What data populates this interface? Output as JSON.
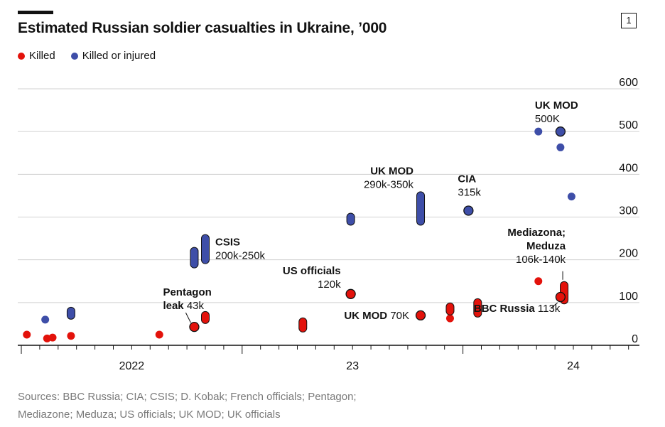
{
  "header": {
    "badge": "1",
    "title": "Estimated Russian soldier casualties in Ukraine, ’000"
  },
  "legend": [
    {
      "label": "Killed",
      "color": "#e3120b"
    },
    {
      "label": "Killed or injured",
      "color": "#3e4ea8"
    }
  ],
  "sources": {
    "line1": "Sources: BBC Russia; CIA; CSIS; D. Kobak; French officials; Pentagon;",
    "line2": "Mediazone; Meduza; US officials; UK MOD; UK officials"
  },
  "chart_data": {
    "type": "scatter",
    "x_unit": "months since Jan 2022",
    "y_ticks": [
      0,
      100,
      200,
      300,
      400,
      500,
      600
    ],
    "ylim": [
      0,
      600
    ],
    "xlim": [
      1.2,
      30.7
    ],
    "x_tick_labels": [
      {
        "x": 12,
        "label": "2022"
      },
      {
        "x": 24,
        "label": "23"
      },
      {
        "x": 36,
        "label": "24"
      }
    ],
    "grid": true,
    "colors": {
      "killed": "#e3120b",
      "injured": "#3e4ea8"
    },
    "series": [
      {
        "name": "Killed",
        "points": [
          {
            "x": 1.3,
            "y": 25,
            "y2": 25
          },
          {
            "x": 2.4,
            "y": 16,
            "y2": 16
          },
          {
            "x": 2.7,
            "y": 18,
            "y2": 18
          },
          {
            "x": 3.7,
            "y": 22,
            "y2": 22
          },
          {
            "x": 8.5,
            "y": 25,
            "y2": 25
          },
          {
            "x": 10.4,
            "y": 43,
            "y2": 43,
            "highlight": true
          },
          {
            "x": 11.0,
            "y": 60,
            "y2": 70
          },
          {
            "x": 16.3,
            "y": 40,
            "y2": 55
          },
          {
            "x": 18.9,
            "y": 120,
            "y2": 120,
            "highlight": true
          },
          {
            "x": 22.7,
            "y": 70,
            "y2": 70,
            "highlight": true
          },
          {
            "x": 24.3,
            "y": 63,
            "y2": 63
          },
          {
            "x": 24.3,
            "y": 80,
            "y2": 90
          },
          {
            "x": 25.8,
            "y": 75,
            "y2": 100
          },
          {
            "x": 29.1,
            "y": 150,
            "y2": 150
          },
          {
            "x": 30.5,
            "y": 106,
            "y2": 140
          },
          {
            "x": 30.3,
            "y": 113,
            "y2": 113,
            "highlight": true
          }
        ]
      },
      {
        "name": "Killed or injured",
        "points": [
          {
            "x": 2.3,
            "y": 60,
            "y2": 60
          },
          {
            "x": 3.7,
            "y": 70,
            "y2": 80
          },
          {
            "x": 10.4,
            "y": 190,
            "y2": 220
          },
          {
            "x": 11.0,
            "y": 200,
            "y2": 250
          },
          {
            "x": 18.9,
            "y": 290,
            "y2": 300
          },
          {
            "x": 22.7,
            "y": 290,
            "y2": 350
          },
          {
            "x": 25.3,
            "y": 315,
            "y2": 315,
            "highlight": true
          },
          {
            "x": 29.1,
            "y": 500,
            "y2": 500
          },
          {
            "x": 30.3,
            "y": 463,
            "y2": 463
          },
          {
            "x": 30.3,
            "y": 500,
            "y2": 500,
            "highlight": true
          },
          {
            "x": 30.9,
            "y": 348,
            "y2": 348
          }
        ]
      }
    ],
    "annotations": [
      {
        "bold": "UK MOD",
        "value": "500K",
        "x": 30.3,
        "y": 500
      },
      {
        "bold": "CIA",
        "value": "315k",
        "x": 25.3,
        "y": 315
      },
      {
        "bold": "UK MOD",
        "value": "290k-350k",
        "x": 22.7,
        "y": 350
      },
      {
        "bold": "CSIS",
        "value": "200k-250k",
        "x": 11.0,
        "y": 250
      },
      {
        "bold": "Mediazona; Meduza",
        "value": "106k-140k",
        "x": 30.5,
        "y": 140
      },
      {
        "bold": "US officials",
        "value": "120k",
        "x": 18.9,
        "y": 120
      },
      {
        "bold": "Pentagon leak",
        "value": "43k",
        "x": 10.4,
        "y": 43
      },
      {
        "bold": "UK MOD",
        "value": "70K",
        "x": 22.7,
        "y": 70
      },
      {
        "bold": "BBC Russia",
        "value": "113k",
        "x": 30.3,
        "y": 113
      }
    ]
  }
}
